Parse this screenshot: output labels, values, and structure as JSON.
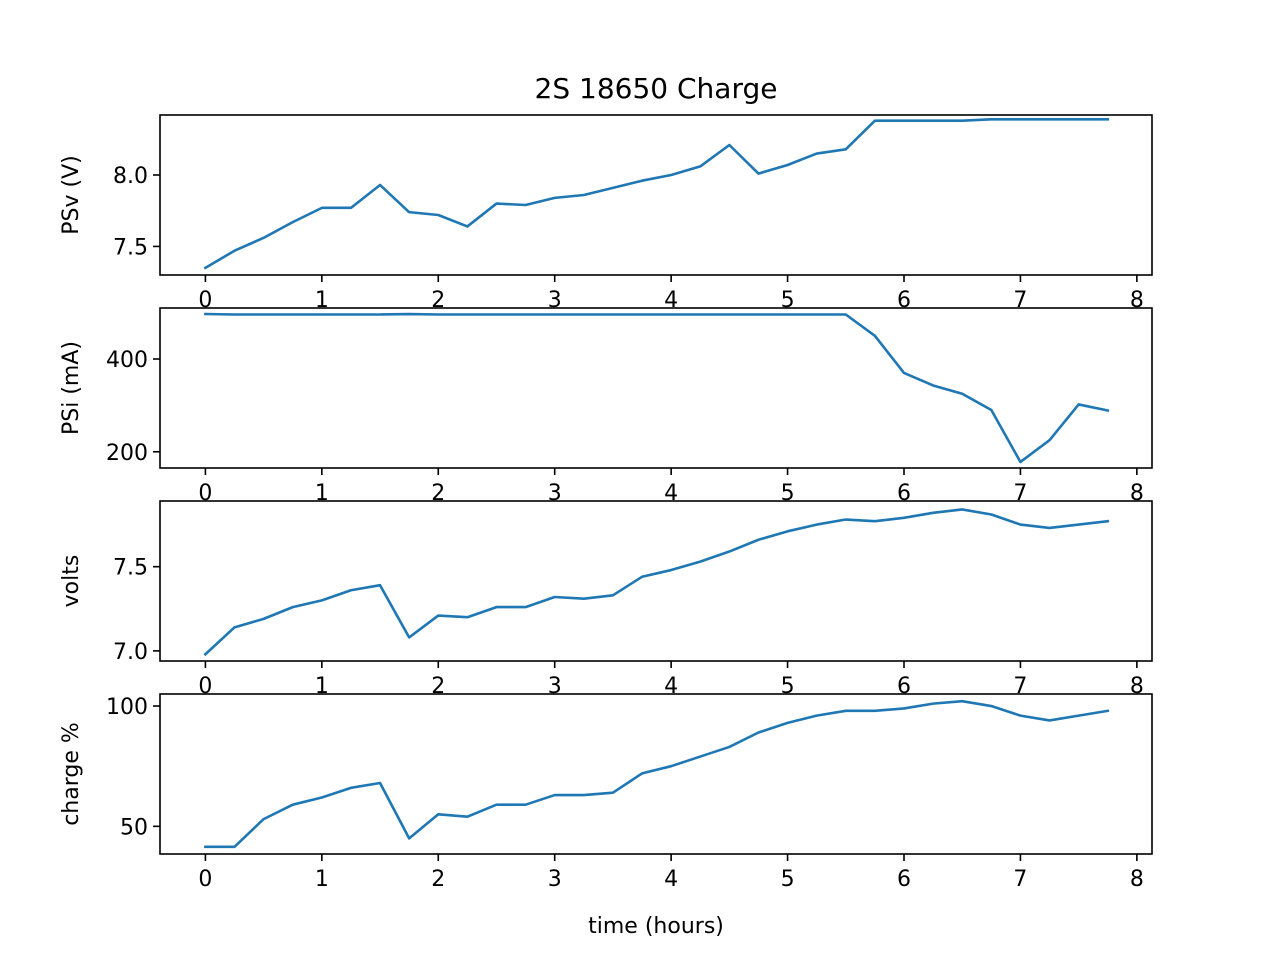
{
  "chart_data": {
    "type": "line",
    "title": "2S 18650 Charge",
    "color": "#1f77b4",
    "x": [
      0,
      0.25,
      0.5,
      0.75,
      1,
      1.25,
      1.5,
      1.75,
      2,
      2.25,
      2.5,
      2.75,
      3,
      3.25,
      3.5,
      3.75,
      4,
      4.25,
      4.5,
      4.75,
      5,
      5.25,
      5.5,
      5.75,
      6,
      6.25,
      6.5,
      6.75,
      7,
      7.25,
      7.5,
      7.75
    ],
    "xlim": [
      -0.39,
      8.13
    ],
    "xticks": [
      0,
      1,
      2,
      3,
      4,
      5,
      6,
      7,
      8
    ],
    "subplots": [
      {
        "ylabel": "PSv (V)",
        "ylim": [
          7.3,
          8.42
        ],
        "yticks": [
          7.5,
          8.0
        ],
        "yticklabels": [
          "7.5",
          "8.0"
        ],
        "xlabel": "",
        "values": [
          7.35,
          7.47,
          7.56,
          7.67,
          7.77,
          7.77,
          7.93,
          7.74,
          7.72,
          7.64,
          7.8,
          7.79,
          7.84,
          7.86,
          7.91,
          7.96,
          8.0,
          8.06,
          8.21,
          8.01,
          8.07,
          8.15,
          8.18,
          8.38,
          8.38,
          8.38,
          8.38,
          8.39,
          8.39,
          8.39,
          8.39,
          8.39
        ]
      },
      {
        "ylabel": "PSi (mA)",
        "ylim": [
          165,
          510
        ],
        "yticks": [
          200,
          400
        ],
        "yticklabels": [
          "200",
          "400"
        ],
        "xlabel": "",
        "values": [
          497,
          496,
          496,
          496,
          496,
          496,
          496,
          497,
          496,
          496,
          496,
          496,
          496,
          496,
          496,
          496,
          496,
          496,
          496,
          496,
          496,
          496,
          496,
          450,
          370,
          343,
          325,
          290,
          178,
          225,
          302,
          289
        ]
      },
      {
        "ylabel": "volts",
        "ylim": [
          6.94,
          7.89
        ],
        "yticks": [
          7.0,
          7.5
        ],
        "yticklabels": [
          "7.0",
          "7.5"
        ],
        "xlabel": "",
        "values": [
          6.98,
          7.14,
          7.19,
          7.26,
          7.3,
          7.36,
          7.39,
          7.08,
          7.21,
          7.2,
          7.26,
          7.26,
          7.32,
          7.31,
          7.33,
          7.44,
          7.48,
          7.53,
          7.59,
          7.66,
          7.71,
          7.75,
          7.78,
          7.77,
          7.79,
          7.82,
          7.84,
          7.81,
          7.75,
          7.73,
          7.75,
          7.77
        ]
      },
      {
        "ylabel": "charge %",
        "ylim": [
          38.5,
          105
        ],
        "yticks": [
          50,
          100
        ],
        "yticklabels": [
          "50",
          "100"
        ],
        "xlabel": "time (hours)",
        "values": [
          41.5,
          41.5,
          53,
          59,
          62,
          66,
          68,
          45,
          55,
          54,
          59,
          59,
          63,
          63,
          64,
          72,
          75,
          79,
          83,
          89,
          93,
          96,
          98,
          98,
          99,
          101,
          102,
          100,
          96,
          94,
          96,
          98
        ]
      }
    ]
  }
}
